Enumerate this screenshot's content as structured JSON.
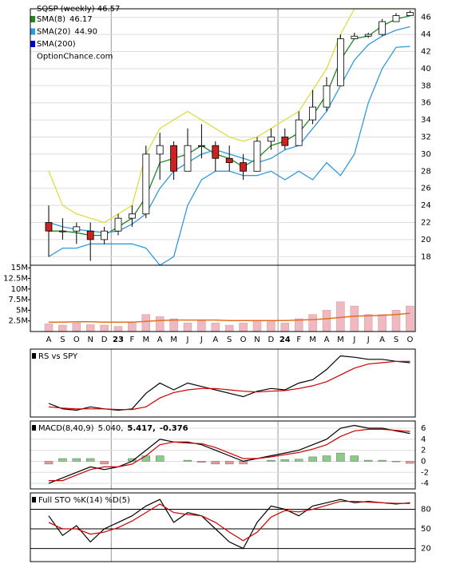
{
  "chart_data": [
    {
      "type": "candlestick",
      "title": "SQSP (weekly) 46.57",
      "annotation": "OptionChance.com",
      "categories": [
        "A",
        "S",
        "O",
        "N",
        "D",
        "23",
        "F",
        "M",
        "A",
        "M",
        "J",
        "J",
        "A",
        "S",
        "O",
        "N",
        "D",
        "24",
        "F",
        "M",
        "A",
        "M",
        "J",
        "J",
        "A",
        "S",
        "O"
      ],
      "open": [
        22,
        21,
        21,
        21,
        20,
        21,
        22.5,
        23,
        30,
        31,
        28,
        31,
        31,
        29.5,
        29,
        28,
        31.5,
        32,
        31,
        34,
        35.5,
        38,
        43.5,
        43.8,
        44,
        45.5,
        46.2
      ],
      "high": [
        24,
        22.5,
        22,
        22,
        21.5,
        23,
        24,
        31,
        32.5,
        31.5,
        33,
        33.5,
        31.5,
        31,
        30,
        32,
        33,
        33,
        35,
        37.5,
        39,
        44,
        44.2,
        44.2,
        45.8,
        46.5,
        46.8
      ],
      "low": [
        18,
        20,
        19.5,
        17.5,
        19.5,
        20.5,
        21.5,
        22.5,
        27,
        27,
        28,
        29.5,
        28,
        28,
        27,
        28,
        30.5,
        30.5,
        31,
        33.5,
        35,
        38,
        43.5,
        43.6,
        43.8,
        45.5,
        46.2
      ],
      "close": [
        21,
        21,
        21.5,
        20,
        21,
        22.5,
        23,
        30,
        31,
        28,
        31,
        31,
        29.5,
        29,
        28,
        31.5,
        32,
        31,
        34,
        35.5,
        38,
        43.5,
        43.8,
        44,
        45.5,
        46.2,
        46.57
      ],
      "up_color": "#ffffff",
      "down_color": "#cc2222",
      "candle_stroke": "#000000",
      "series": [
        {
          "name": "SMA(8)",
          "last_label": "46.17",
          "color": "#228822",
          "values": [
            21,
            21,
            20.8,
            20.5,
            20.5,
            21.5,
            22.5,
            25,
            29,
            29.5,
            30,
            31,
            30,
            29.5,
            28.5,
            29.5,
            31,
            31.5,
            32.5,
            34.5,
            37,
            41,
            43.5,
            43.8,
            45,
            45.8,
            46.17
          ]
        },
        {
          "name": "SMA(20)",
          "last_label": "44.90",
          "color": "#3399dd",
          "values": [
            22,
            21.5,
            21.2,
            21,
            20.8,
            21,
            21.8,
            23,
            26,
            28,
            29,
            30,
            30.5,
            30,
            29.5,
            29,
            29.5,
            30.5,
            31,
            33,
            35,
            38,
            41,
            42.8,
            43.8,
            44.5,
            44.9
          ]
        },
        {
          "name": "SMA(200)",
          "color": "#0000cc"
        }
      ],
      "upper_band": [
        28,
        24,
        23,
        22.5,
        22,
        23,
        24,
        30,
        33,
        34,
        35,
        34,
        33,
        32,
        31.5,
        32,
        33,
        34,
        35,
        37.5,
        40,
        44,
        47,
        47,
        47,
        47,
        47
      ],
      "upper_band_color": "#dddd44",
      "lower_band": [
        18,
        19,
        19,
        19.5,
        19.5,
        19.5,
        19.5,
        19,
        17,
        18,
        24,
        27,
        28,
        28,
        27.5,
        27.5,
        28,
        27,
        28,
        27,
        29,
        27.5,
        30,
        36,
        40,
        42.5,
        42.6
      ],
      "lower_band_color": "#3399dd",
      "ylim": [
        17,
        47
      ],
      "yticks": [
        18,
        20,
        22,
        24,
        26,
        28,
        30,
        32,
        34,
        36,
        38,
        40,
        42,
        44,
        46
      ],
      "ytick_side": "right",
      "grid": true
    },
    {
      "type": "bar",
      "color": "#f0b8c0",
      "values": [
        1800000,
        1500000,
        2000000,
        1600000,
        1500000,
        1200000,
        2000000,
        4000000,
        3500000,
        3000000,
        2000000,
        2500000,
        2000000,
        1500000,
        2000000,
        2500000,
        2500000,
        2000000,
        3000000,
        4000000,
        5000000,
        7000000,
        6000000,
        4000000,
        4000000,
        5000000,
        6000000
      ],
      "average": [
        2200000,
        2200000,
        2300000,
        2300000,
        2200000,
        2200000,
        2200000,
        2400000,
        2600000,
        2700000,
        2700000,
        2700000,
        2700000,
        2600000,
        2600000,
        2600000,
        2600000,
        2600000,
        2700000,
        2800000,
        3000000,
        3300000,
        3600000,
        3700000,
        3800000,
        4000000,
        4300000
      ],
      "average_color": "#e07020",
      "ylim": [
        0,
        15600000
      ],
      "yticks": [
        {
          "value": 2500000,
          "label": "2.5M"
        },
        {
          "value": 5000000,
          "label": "5M"
        },
        {
          "value": 7500000,
          "label": "7.5M"
        },
        {
          "value": 10000000,
          "label": "10M"
        },
        {
          "value": 12500000,
          "label": "12.5M"
        },
        {
          "value": 15000000,
          "label": "15M"
        }
      ],
      "ytick_side": "left",
      "grid": false
    },
    {
      "type": "line",
      "title": "RS vs SPY",
      "series": [
        {
          "color": "#000000",
          "values": [
            20,
            12,
            10,
            15,
            12,
            10,
            12,
            35,
            50,
            40,
            50,
            45,
            40,
            35,
            30,
            38,
            42,
            40,
            50,
            55,
            70,
            90,
            88,
            85,
            85,
            82,
            80
          ]
        },
        {
          "color": "#cc0000",
          "values": [
            15,
            13,
            12,
            12,
            12,
            11,
            11,
            15,
            28,
            36,
            40,
            42,
            42,
            40,
            38,
            37,
            38,
            39,
            42,
            46,
            52,
            62,
            72,
            78,
            80,
            82,
            82
          ]
        }
      ],
      "ylim": [
        0,
        100
      ],
      "grid": false
    },
    {
      "type": "line",
      "title": "MACD(8,40,9)",
      "legend_texts": [
        "5.040,",
        "5.417,",
        "-0.376"
      ],
      "legend_colors": [
        "#000000",
        "#cc0000",
        "#3355aa"
      ],
      "series": [
        {
          "color": "#000000",
          "values": [
            -4,
            -3,
            -2,
            -1,
            -1.5,
            -1,
            0,
            2,
            4,
            3.5,
            3.5,
            3,
            2,
            1,
            0,
            0.5,
            1,
            1.5,
            2,
            3,
            4,
            6,
            6.5,
            6,
            6,
            5.5,
            5.04
          ]
        },
        {
          "color": "#cc0000",
          "values": [
            -3.5,
            -3.5,
            -2.5,
            -1.5,
            -1,
            -1,
            -0.5,
            1,
            3,
            3.5,
            3.3,
            3.2,
            2.5,
            1.5,
            0.5,
            0.5,
            0.8,
            1.2,
            1.6,
            2.2,
            3,
            4.5,
            5.5,
            5.8,
            5.8,
            5.6,
            5.417
          ]
        }
      ],
      "histogram": [
        -0.5,
        0.5,
        0.5,
        0.5,
        -0.5,
        0,
        0.5,
        1,
        1,
        0,
        0.2,
        -0.2,
        -0.5,
        -0.5,
        -0.5,
        0,
        0.2,
        0.3,
        0.4,
        0.8,
        1,
        1.5,
        1,
        0.2,
        0.2,
        -0.1,
        -0.376
      ],
      "histogram_up_color": "#88cc88",
      "histogram_down_color": "#ee9999",
      "ylim": [
        -5,
        7.3
      ],
      "yticks": [
        -4,
        -2,
        0,
        2,
        4,
        6
      ],
      "ytick_side": "right",
      "grid": true
    },
    {
      "type": "line",
      "title": "Full STO %K(14) %D(5)",
      "series": [
        {
          "color": "#000000",
          "values": [
            70,
            40,
            55,
            30,
            50,
            60,
            70,
            85,
            95,
            60,
            75,
            70,
            50,
            30,
            20,
            60,
            85,
            80,
            70,
            85,
            90,
            95,
            90,
            92,
            90,
            88,
            90
          ]
        },
        {
          "color": "#cc0000",
          "values": [
            60,
            50,
            50,
            42,
            45,
            52,
            62,
            75,
            88,
            75,
            72,
            70,
            60,
            45,
            32,
            45,
            68,
            78,
            76,
            80,
            86,
            92,
            92,
            91,
            90,
            89,
            89
          ]
        }
      ],
      "ylim": [
        0,
        105
      ],
      "yticks": [
        20,
        50,
        80
      ],
      "ytick_side": "right",
      "grid": true
    }
  ]
}
